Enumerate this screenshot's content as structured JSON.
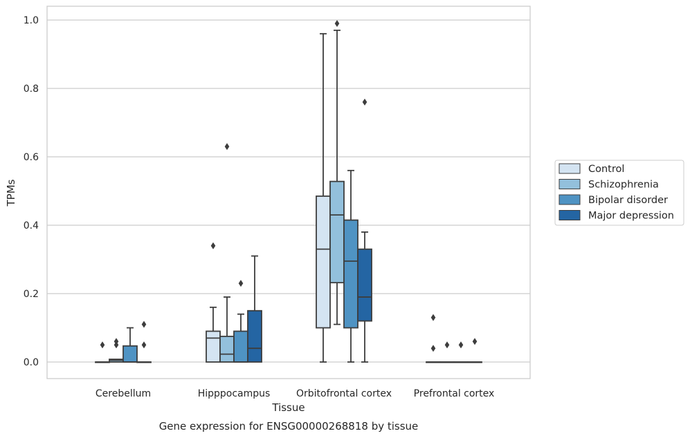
{
  "chart_data": {
    "type": "box",
    "title": "",
    "caption": "Gene expression for ENSG00000268818 by tissue",
    "xlabel": "Tissue",
    "ylabel": "TPMs",
    "ylim": [
      -0.048,
      1.042
    ],
    "yticks": [
      "0.0",
      "0.2",
      "0.4",
      "0.6",
      "0.8",
      "1.0"
    ],
    "ytick_values": [
      0.0,
      0.2,
      0.4,
      0.6,
      0.8,
      1.0
    ],
    "grid": "horizontal",
    "legend_position": "right",
    "categories": [
      "Cerebellum",
      "Hipppocampus",
      "Orbitofrontal cortex",
      "Prefrontal cortex"
    ],
    "series": [
      {
        "name": "Control",
        "color": "#d4e4f2",
        "boxes": [
          {
            "whislo": 0.0,
            "q1": 0.0,
            "med": 0.0,
            "q3": 0.0,
            "whishi": 0.0,
            "fliers": [
              0.05
            ]
          },
          {
            "whislo": 0.0,
            "q1": 0.0,
            "med": 0.07,
            "q3": 0.09,
            "whishi": 0.16,
            "fliers": [
              0.34
            ]
          },
          {
            "whislo": 0.0,
            "q1": 0.1,
            "med": 0.33,
            "q3": 0.485,
            "whishi": 0.96,
            "fliers": []
          },
          {
            "whislo": 0.0,
            "q1": 0.0,
            "med": 0.0,
            "q3": 0.0,
            "whishi": 0.0,
            "fliers": [
              0.13,
              0.04
            ]
          }
        ]
      },
      {
        "name": "Schizophrenia",
        "color": "#93c0dc",
        "boxes": [
          {
            "whislo": 0.0,
            "q1": 0.0,
            "med": 0.005,
            "q3": 0.008,
            "whishi": 0.008,
            "fliers": [
              0.05,
              0.06
            ]
          },
          {
            "whislo": 0.0,
            "q1": 0.0,
            "med": 0.023,
            "q3": 0.075,
            "whishi": 0.19,
            "fliers": [
              0.63
            ]
          },
          {
            "whislo": 0.11,
            "q1": 0.232,
            "med": 0.43,
            "q3": 0.528,
            "whishi": 0.97,
            "fliers": [
              0.99
            ]
          },
          {
            "whislo": 0.0,
            "q1": 0.0,
            "med": 0.0,
            "q3": 0.0,
            "whishi": 0.0,
            "fliers": [
              0.05
            ]
          }
        ]
      },
      {
        "name": "Bipolar disorder",
        "color": "#4f93c3",
        "boxes": [
          {
            "whislo": 0.0,
            "q1": 0.0,
            "med": 0.0,
            "q3": 0.047,
            "whishi": 0.1,
            "fliers": []
          },
          {
            "whislo": 0.0,
            "q1": 0.0,
            "med": 0.0,
            "q3": 0.09,
            "whishi": 0.14,
            "fliers": [
              0.23
            ]
          },
          {
            "whislo": 0.0,
            "q1": 0.1,
            "med": 0.295,
            "q3": 0.415,
            "whishi": 0.56,
            "fliers": []
          },
          {
            "whislo": 0.0,
            "q1": 0.0,
            "med": 0.0,
            "q3": 0.0,
            "whishi": 0.0,
            "fliers": [
              0.05
            ]
          }
        ]
      },
      {
        "name": "Major depression",
        "color": "#2465a3",
        "boxes": [
          {
            "whislo": 0.0,
            "q1": 0.0,
            "med": 0.0,
            "q3": 0.0,
            "whishi": 0.0,
            "fliers": [
              0.11,
              0.05
            ]
          },
          {
            "whislo": 0.0,
            "q1": 0.0,
            "med": 0.04,
            "q3": 0.15,
            "whishi": 0.31,
            "fliers": []
          },
          {
            "whislo": 0.0,
            "q1": 0.12,
            "med": 0.19,
            "q3": 0.33,
            "whishi": 0.38,
            "fliers": [
              0.76
            ]
          },
          {
            "whislo": 0.0,
            "q1": 0.0,
            "med": 0.0,
            "q3": 0.0,
            "whishi": 0.0,
            "fliers": [
              0.06
            ]
          }
        ]
      }
    ]
  }
}
